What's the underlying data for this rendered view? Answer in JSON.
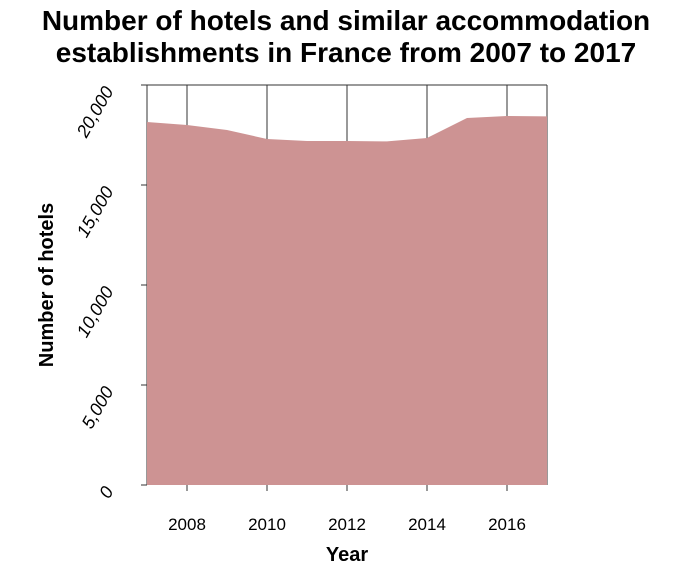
{
  "chart_data": {
    "type": "area",
    "title_lines": [
      "Number of hotels and similar accommodation",
      "establishments in France from 2007 to 2017"
    ],
    "xlabel": "Year",
    "ylabel": "Number of hotels",
    "x": [
      2007,
      2008,
      2009,
      2010,
      2011,
      2012,
      2013,
      2014,
      2015,
      2016,
      2017
    ],
    "values": [
      18150,
      18000,
      17750,
      17300,
      17200,
      17200,
      17180,
      17350,
      18350,
      18450,
      18430
    ],
    "xlim": [
      2007,
      2017
    ],
    "ylim": [
      0,
      20000
    ],
    "xticks": [
      2008,
      2010,
      2012,
      2014,
      2016
    ],
    "xtick_labels": [
      "2008",
      "2010",
      "2012",
      "2014",
      "2016"
    ],
    "yticks": [
      0,
      5000,
      10000,
      15000,
      20000
    ],
    "ytick_labels": [
      "0",
      "5,000",
      "10,000",
      "15,000",
      "20,000"
    ],
    "grid": true,
    "fill_color": "#cd9393",
    "grid_color": "#333333"
  }
}
